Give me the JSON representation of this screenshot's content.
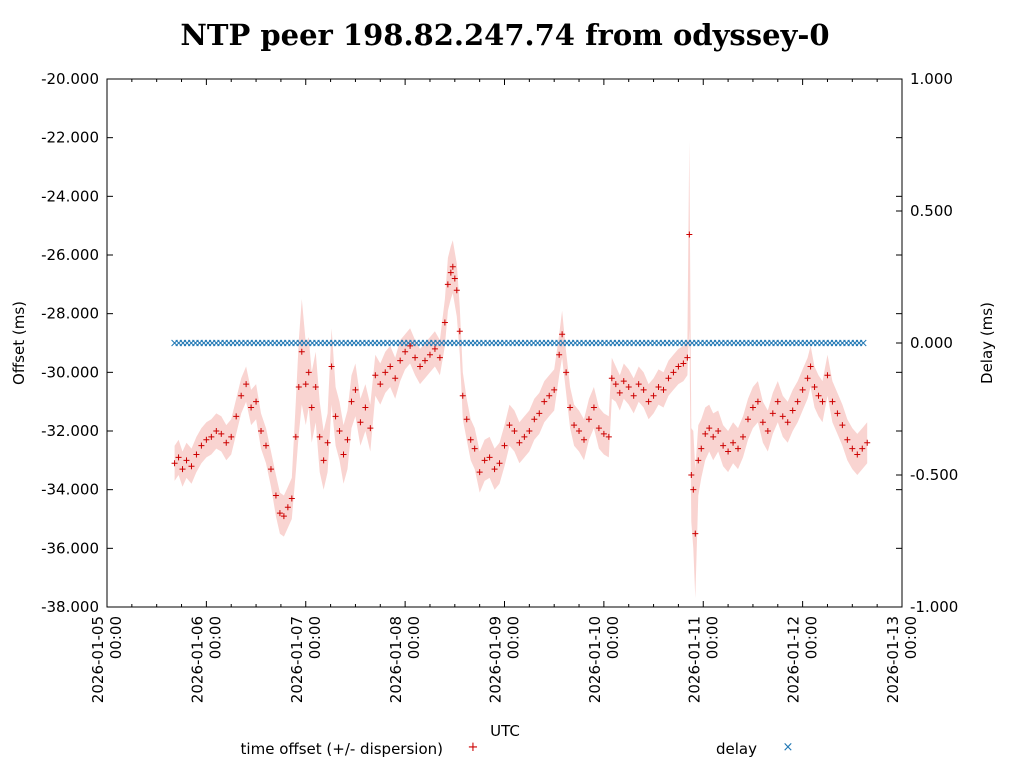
{
  "chart_data": {
    "type": "scatter",
    "title": "NTP peer 198.82.247.74 from odyssey-0",
    "xlabel": "UTC",
    "ylabel": "Offset (ms)",
    "y2label": "Delay (ms)",
    "ylim": [
      -38,
      -20
    ],
    "y2lim": [
      -1,
      1
    ],
    "x_day_range": [
      0,
      8
    ],
    "y_ticks": [
      "-20.000",
      "-22.000",
      "-24.000",
      "-26.000",
      "-28.000",
      "-30.000",
      "-32.000",
      "-34.000",
      "-36.000",
      "-38.000"
    ],
    "y2_ticks": [
      "1.000",
      "0.500",
      "0.000",
      "-0.500",
      "-1.000"
    ],
    "x_ticks": [
      {
        "date": "2026-01-05",
        "time": "00:00"
      },
      {
        "date": "2026-01-06",
        "time": "00:00"
      },
      {
        "date": "2026-01-07",
        "time": "00:00"
      },
      {
        "date": "2026-01-08",
        "time": "00:00"
      },
      {
        "date": "2026-01-09",
        "time": "00:00"
      },
      {
        "date": "2026-01-10",
        "time": "00:00"
      },
      {
        "date": "2026-01-11",
        "time": "00:00"
      },
      {
        "date": "2026-01-12",
        "time": "00:00"
      },
      {
        "date": "2026-01-13",
        "time": "00:00"
      }
    ],
    "series": [
      {
        "name": "time offset (+/- dispersion)",
        "marker": "+",
        "color": "#cc0000",
        "band_color": "#f7c6c2",
        "points": [
          [
            0.68,
            -33.1
          ],
          [
            0.72,
            -32.9
          ],
          [
            0.76,
            -33.3
          ],
          [
            0.8,
            -33.0
          ],
          [
            0.85,
            -33.2
          ],
          [
            0.9,
            -32.8
          ],
          [
            0.95,
            -32.5
          ],
          [
            1.0,
            -32.3
          ],
          [
            1.05,
            -32.2
          ],
          [
            1.1,
            -32.0
          ],
          [
            1.15,
            -32.1
          ],
          [
            1.2,
            -32.4
          ],
          [
            1.25,
            -32.2
          ],
          [
            1.3,
            -31.5
          ],
          [
            1.35,
            -30.8
          ],
          [
            1.4,
            -30.4
          ],
          [
            1.45,
            -31.2
          ],
          [
            1.5,
            -31.0
          ],
          [
            1.55,
            -32.0
          ],
          [
            1.6,
            -32.5
          ],
          [
            1.65,
            -33.3
          ],
          [
            1.7,
            -34.2
          ],
          [
            1.74,
            -34.8
          ],
          [
            1.78,
            -34.9
          ],
          [
            1.82,
            -34.6
          ],
          [
            1.86,
            -34.3
          ],
          [
            1.9,
            -32.2
          ],
          [
            1.93,
            -30.5
          ],
          [
            1.96,
            -29.3
          ],
          [
            2.0,
            -30.4
          ],
          [
            2.03,
            -30.0
          ],
          [
            2.06,
            -31.2
          ],
          [
            2.1,
            -30.5
          ],
          [
            2.14,
            -32.2
          ],
          [
            2.18,
            -33.0
          ],
          [
            2.22,
            -32.4
          ],
          [
            2.26,
            -29.8
          ],
          [
            2.3,
            -31.5
          ],
          [
            2.34,
            -32.0
          ],
          [
            2.38,
            -32.8
          ],
          [
            2.42,
            -32.3
          ],
          [
            2.46,
            -31.0
          ],
          [
            2.5,
            -30.6
          ],
          [
            2.55,
            -31.7
          ],
          [
            2.6,
            -31.2
          ],
          [
            2.65,
            -31.9
          ],
          [
            2.7,
            -30.1
          ],
          [
            2.75,
            -30.4
          ],
          [
            2.8,
            -30.0
          ],
          [
            2.85,
            -29.8
          ],
          [
            2.9,
            -30.2
          ],
          [
            2.95,
            -29.6
          ],
          [
            3.0,
            -29.3
          ],
          [
            3.05,
            -29.1
          ],
          [
            3.1,
            -29.5
          ],
          [
            3.15,
            -29.8
          ],
          [
            3.2,
            -29.6
          ],
          [
            3.25,
            -29.4
          ],
          [
            3.3,
            -29.2
          ],
          [
            3.35,
            -29.5
          ],
          [
            3.4,
            -28.3
          ],
          [
            3.43,
            -27.0
          ],
          [
            3.46,
            -26.6
          ],
          [
            3.48,
            -26.4
          ],
          [
            3.5,
            -26.8
          ],
          [
            3.52,
            -27.2
          ],
          [
            3.55,
            -28.6
          ],
          [
            3.58,
            -30.8
          ],
          [
            3.62,
            -31.6
          ],
          [
            3.66,
            -32.3
          ],
          [
            3.7,
            -32.6
          ],
          [
            3.75,
            -33.4
          ],
          [
            3.8,
            -33.0
          ],
          [
            3.85,
            -32.9
          ],
          [
            3.9,
            -33.3
          ],
          [
            3.95,
            -33.1
          ],
          [
            4.0,
            -32.5
          ],
          [
            4.05,
            -31.8
          ],
          [
            4.1,
            -32.0
          ],
          [
            4.15,
            -32.4
          ],
          [
            4.2,
            -32.2
          ],
          [
            4.25,
            -32.0
          ],
          [
            4.3,
            -31.6
          ],
          [
            4.35,
            -31.4
          ],
          [
            4.4,
            -31.0
          ],
          [
            4.45,
            -30.8
          ],
          [
            4.5,
            -30.6
          ],
          [
            4.55,
            -29.4
          ],
          [
            4.58,
            -28.7
          ],
          [
            4.62,
            -30.0
          ],
          [
            4.66,
            -31.2
          ],
          [
            4.7,
            -31.8
          ],
          [
            4.75,
            -32.0
          ],
          [
            4.8,
            -32.3
          ],
          [
            4.85,
            -31.6
          ],
          [
            4.9,
            -31.2
          ],
          [
            4.95,
            -31.9
          ],
          [
            5.0,
            -32.1
          ],
          [
            5.05,
            -32.2
          ],
          [
            5.08,
            -30.2
          ],
          [
            5.12,
            -30.4
          ],
          [
            5.16,
            -30.7
          ],
          [
            5.2,
            -30.3
          ],
          [
            5.25,
            -30.5
          ],
          [
            5.3,
            -30.8
          ],
          [
            5.35,
            -30.4
          ],
          [
            5.4,
            -30.6
          ],
          [
            5.45,
            -31.0
          ],
          [
            5.5,
            -30.8
          ],
          [
            5.55,
            -30.5
          ],
          [
            5.6,
            -30.6
          ],
          [
            5.65,
            -30.2
          ],
          [
            5.7,
            -30.0
          ],
          [
            5.75,
            -29.8
          ],
          [
            5.8,
            -29.7
          ],
          [
            5.84,
            -29.5
          ],
          [
            5.86,
            -25.3
          ],
          [
            5.88,
            -33.5
          ],
          [
            5.9,
            -34.0
          ],
          [
            5.92,
            -35.5
          ],
          [
            5.95,
            -33.0
          ],
          [
            5.98,
            -32.6
          ],
          [
            6.02,
            -32.1
          ],
          [
            6.06,
            -31.9
          ],
          [
            6.1,
            -32.2
          ],
          [
            6.15,
            -32.0
          ],
          [
            6.2,
            -32.5
          ],
          [
            6.25,
            -32.7
          ],
          [
            6.3,
            -32.4
          ],
          [
            6.35,
            -32.6
          ],
          [
            6.4,
            -32.2
          ],
          [
            6.45,
            -31.6
          ],
          [
            6.5,
            -31.2
          ],
          [
            6.55,
            -31.0
          ],
          [
            6.6,
            -31.7
          ],
          [
            6.65,
            -32.0
          ],
          [
            6.7,
            -31.4
          ],
          [
            6.75,
            -31.0
          ],
          [
            6.8,
            -31.5
          ],
          [
            6.85,
            -31.7
          ],
          [
            6.9,
            -31.3
          ],
          [
            6.95,
            -31.0
          ],
          [
            7.0,
            -30.6
          ],
          [
            7.05,
            -30.2
          ],
          [
            7.08,
            -29.8
          ],
          [
            7.12,
            -30.5
          ],
          [
            7.16,
            -30.8
          ],
          [
            7.2,
            -31.0
          ],
          [
            7.25,
            -30.1
          ],
          [
            7.3,
            -31.0
          ],
          [
            7.35,
            -31.4
          ],
          [
            7.4,
            -31.8
          ],
          [
            7.45,
            -32.3
          ],
          [
            7.5,
            -32.6
          ],
          [
            7.55,
            -32.8
          ],
          [
            7.6,
            -32.6
          ],
          [
            7.65,
            -32.4
          ]
        ],
        "errors": [
          0.6,
          0.6,
          0.6,
          0.6,
          0.6,
          0.6,
          0.6,
          0.6,
          0.6,
          0.6,
          0.6,
          0.6,
          0.6,
          0.6,
          0.6,
          0.6,
          0.6,
          0.6,
          0.6,
          0.6,
          0.6,
          0.7,
          0.7,
          0.7,
          0.7,
          0.7,
          1.2,
          1.6,
          1.8,
          1.4,
          1.2,
          1.2,
          1.2,
          1.2,
          1.0,
          1.0,
          1.3,
          1.0,
          1.0,
          1.0,
          1.0,
          0.9,
          0.9,
          0.8,
          0.8,
          0.8,
          0.7,
          0.7,
          0.7,
          0.7,
          0.7,
          0.7,
          0.6,
          0.6,
          0.6,
          0.6,
          0.6,
          0.6,
          0.6,
          0.6,
          0.8,
          0.9,
          0.9,
          0.9,
          0.9,
          0.9,
          0.8,
          0.8,
          0.7,
          0.7,
          0.7,
          0.7,
          0.7,
          0.7,
          0.7,
          0.7,
          0.7,
          0.7,
          0.7,
          0.7,
          0.7,
          0.7,
          0.7,
          0.7,
          0.7,
          0.7,
          0.7,
          0.7,
          0.8,
          0.7,
          0.7,
          0.7,
          0.7,
          0.7,
          0.7,
          0.7,
          0.7,
          0.7,
          0.7,
          0.7,
          0.6,
          0.6,
          0.6,
          0.6,
          0.6,
          0.6,
          0.6,
          0.6,
          0.6,
          0.6,
          0.6,
          0.6,
          0.6,
          0.6,
          0.6,
          0.6,
          3.2,
          1.6,
          2.0,
          2.2,
          1.2,
          1.0,
          0.9,
          0.8,
          0.8,
          0.7,
          0.7,
          0.7,
          0.7,
          0.7,
          0.7,
          0.7,
          0.7,
          0.7,
          0.7,
          0.7,
          0.7,
          0.7,
          0.7,
          0.7,
          0.7,
          0.7,
          0.7,
          0.7,
          0.7,
          0.7,
          0.7,
          0.7,
          0.7,
          0.7,
          0.7,
          0.7,
          0.7,
          0.7,
          0.7,
          0.7,
          0.7
        ]
      },
      {
        "name": "delay",
        "marker": "×",
        "color": "#1f77b4",
        "axis": "y2",
        "x_start": 0.68,
        "x_end": 7.65,
        "x_step": 0.042,
        "value": 0.0
      }
    ]
  }
}
